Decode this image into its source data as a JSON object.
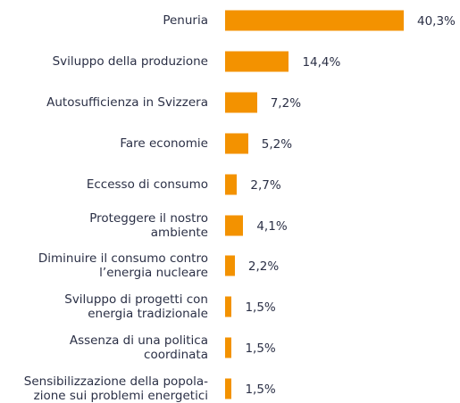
{
  "chart_data": {
    "type": "bar",
    "orientation": "horizontal",
    "color": "#f39200",
    "categories": [
      "Penuria",
      "Sviluppo della produzione",
      "Autosufficienza in Svizzera",
      "Fare economie",
      "Eccesso di consumo",
      "Proteggere il nostro\nambiente",
      "Diminuire il consumo contro\nl’energia nucleare",
      "Sviluppo di progetti con\nenergia tradizionale",
      "Assenza di una politica\ncoordinata",
      "Sensibilizzazione della popola-\nzione sui problemi energetici"
    ],
    "values": [
      40.3,
      14.4,
      7.2,
      5.2,
      2.7,
      4.1,
      2.2,
      1.5,
      1.5,
      1.5
    ],
    "value_labels": [
      "40,3%",
      "14,4%",
      "7,2%",
      "5,2%",
      "2,7%",
      "4,1%",
      "2,2%",
      "1,5%",
      "1,5%",
      "1,5%"
    ]
  }
}
